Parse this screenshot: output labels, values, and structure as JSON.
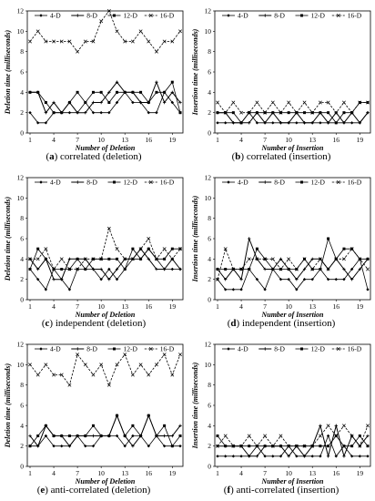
{
  "chart_data": [
    {
      "id": "a",
      "type": "line",
      "caption_letter": "a",
      "caption_text": "correlated (deletion)",
      "xlabel": "Number of Deletion",
      "ylabel": "Deletion time (milliseconds)",
      "ylim": [
        0,
        12
      ],
      "yticks": [
        "0",
        "2",
        "4",
        "6",
        "8",
        "10",
        "12"
      ],
      "x": [
        1,
        2,
        3,
        4,
        5,
        6,
        7,
        8,
        9,
        10,
        11,
        12,
        13,
        14,
        15,
        16,
        17,
        18,
        19,
        20
      ],
      "xticks": [
        "1",
        "4",
        "7",
        "10",
        "13",
        "16",
        "19"
      ],
      "legend_placement": "top",
      "series": [
        {
          "name": "4-D",
          "values": [
            2,
            1,
            1,
            2,
            2,
            2,
            2,
            3,
            2,
            2,
            2,
            3,
            4,
            3,
            3,
            2,
            2,
            4,
            3,
            2
          ]
        },
        {
          "name": "8-D",
          "values": [
            4,
            4,
            2,
            3,
            2,
            3,
            2,
            2,
            3,
            3,
            4,
            5,
            4,
            4,
            3,
            3,
            5,
            3,
            4,
            3
          ]
        },
        {
          "name": "12-D",
          "values": [
            4,
            4,
            3,
            2,
            2,
            3,
            4,
            3,
            4,
            4,
            3,
            4,
            4,
            4,
            4,
            3,
            4,
            4,
            5,
            2
          ]
        },
        {
          "name": "16-D",
          "values": [
            9,
            10,
            9,
            9,
            9,
            9,
            8,
            9,
            9,
            11,
            12,
            10,
            9,
            9,
            10,
            9,
            8,
            9,
            9,
            10
          ]
        }
      ]
    },
    {
      "id": "b",
      "type": "line",
      "caption_letter": "b",
      "caption_text": "correlated (insertion)",
      "xlabel": "Number of Insertion",
      "ylabel": "Insertion time (milliseconds)",
      "ylim": [
        0,
        12
      ],
      "yticks": [
        "0",
        "2",
        "4",
        "6",
        "8",
        "10",
        "12"
      ],
      "x": [
        1,
        2,
        3,
        4,
        5,
        6,
        7,
        8,
        9,
        10,
        11,
        12,
        13,
        14,
        15,
        16,
        17,
        18,
        19,
        20
      ],
      "xticks": [
        "1",
        "4",
        "7",
        "10",
        "13",
        "16",
        "19"
      ],
      "legend_placement": "top",
      "series": [
        {
          "name": "4-D",
          "values": [
            1,
            1,
            1,
            1,
            2,
            1,
            1,
            1,
            1,
            1,
            1,
            1,
            1,
            1,
            1,
            1,
            1,
            1,
            1,
            2
          ]
        },
        {
          "name": "8-D",
          "values": [
            2,
            2,
            1,
            1,
            1,
            2,
            1,
            2,
            1,
            1,
            2,
            1,
            1,
            2,
            1,
            2,
            1,
            2,
            1,
            2
          ]
        },
        {
          "name": "12-D",
          "values": [
            2,
            2,
            2,
            1,
            2,
            2,
            2,
            2,
            2,
            2,
            2,
            2,
            2,
            2,
            2,
            1,
            2,
            2,
            3,
            3
          ]
        },
        {
          "name": "16-D",
          "values": [
            3,
            2,
            3,
            2,
            2,
            3,
            2,
            3,
            2,
            3,
            2,
            3,
            2,
            3,
            3,
            2,
            3,
            2,
            3,
            3
          ]
        }
      ]
    },
    {
      "id": "c",
      "type": "line",
      "caption_letter": "c",
      "caption_text": "independent (deletion)",
      "xlabel": "Number of Deletion",
      "ylabel": "Deletion time (milliseconds)",
      "ylim": [
        0,
        12
      ],
      "yticks": [
        "0",
        "2",
        "4",
        "6",
        "8",
        "10",
        "12"
      ],
      "x": [
        1,
        2,
        3,
        4,
        5,
        6,
        7,
        8,
        9,
        10,
        11,
        12,
        13,
        14,
        15,
        16,
        17,
        18,
        19,
        20
      ],
      "xticks": [
        "1",
        "4",
        "7",
        "10",
        "13",
        "16",
        "19"
      ],
      "legend_placement": "top",
      "series": [
        {
          "name": "4-D",
          "values": [
            3,
            2,
            1,
            3,
            2,
            1,
            3,
            3,
            3,
            2,
            3,
            2,
            3,
            4,
            4,
            5,
            4,
            3,
            3,
            3
          ]
        },
        {
          "name": "8-D",
          "values": [
            4,
            3,
            4,
            2,
            2,
            4,
            4,
            4,
            3,
            3,
            2,
            3,
            4,
            4,
            5,
            4,
            3,
            3,
            4,
            3
          ]
        },
        {
          "name": "12-D",
          "values": [
            3,
            5,
            4,
            3,
            3,
            3,
            4,
            3,
            4,
            4,
            4,
            4,
            3,
            5,
            4,
            5,
            4,
            4,
            5,
            5
          ]
        },
        {
          "name": "16-D",
          "values": [
            4,
            4,
            5,
            3,
            4,
            3,
            3,
            4,
            4,
            4,
            7,
            5,
            4,
            4,
            5,
            6,
            4,
            5,
            4,
            5
          ]
        }
      ]
    },
    {
      "id": "d",
      "type": "line",
      "caption_letter": "d",
      "caption_text": "independent (insertion)",
      "xlabel": "Number of Insertion",
      "ylabel": "Insertion time (milliseconds)",
      "ylim": [
        0,
        12
      ],
      "yticks": [
        "0",
        "2",
        "4",
        "6",
        "8",
        "10",
        "12"
      ],
      "x": [
        1,
        2,
        3,
        4,
        5,
        6,
        7,
        8,
        9,
        10,
        11,
        12,
        13,
        14,
        15,
        16,
        17,
        18,
        19,
        20
      ],
      "xticks": [
        "1",
        "4",
        "7",
        "10",
        "13",
        "16",
        "19"
      ],
      "legend_placement": "top",
      "series": [
        {
          "name": "4-D",
          "values": [
            2,
            1,
            1,
            1,
            3,
            2,
            1,
            3,
            2,
            2,
            1,
            2,
            2,
            3,
            2,
            2,
            2,
            3,
            4,
            1
          ]
        },
        {
          "name": "8-D",
          "values": [
            3,
            2,
            3,
            2,
            6,
            4,
            3,
            3,
            4,
            3,
            2,
            3,
            4,
            4,
            3,
            4,
            3,
            2,
            3,
            4
          ]
        },
        {
          "name": "12-D",
          "values": [
            3,
            3,
            3,
            3,
            3,
            5,
            4,
            3,
            3,
            3,
            3,
            4,
            3,
            3,
            6,
            4,
            5,
            5,
            4,
            4
          ]
        },
        {
          "name": "16-D",
          "values": [
            2,
            5,
            3,
            3,
            4,
            4,
            4,
            4,
            3,
            4,
            3,
            4,
            3,
            4,
            3,
            4,
            4,
            5,
            4,
            3
          ]
        }
      ]
    },
    {
      "id": "e",
      "type": "line",
      "caption_letter": "e",
      "caption_text": "anti-correlated (deletion)",
      "xlabel": "Number of Deletion",
      "ylabel": "Deletion time (milliseconds)",
      "ylim": [
        0,
        12
      ],
      "yticks": [
        "0",
        "2",
        "4",
        "6",
        "8",
        "10",
        "12"
      ],
      "x": [
        1,
        2,
        3,
        4,
        5,
        6,
        7,
        8,
        9,
        10,
        11,
        12,
        13,
        14,
        15,
        16,
        17,
        18,
        19,
        20
      ],
      "xticks": [
        "1",
        "4",
        "7",
        "10",
        "13",
        "16",
        "19"
      ],
      "legend_placement": "top",
      "series": [
        {
          "name": "4-D",
          "values": [
            2,
            2,
            3,
            2,
            2,
            2,
            3,
            2,
            2,
            3,
            3,
            3,
            2,
            3,
            3,
            2,
            3,
            2,
            2,
            2
          ]
        },
        {
          "name": "8-D",
          "values": [
            3,
            2,
            4,
            3,
            3,
            2,
            3,
            3,
            3,
            3,
            3,
            5,
            3,
            2,
            3,
            5,
            3,
            3,
            3,
            4
          ]
        },
        {
          "name": "12-D",
          "values": [
            2,
            3,
            4,
            3,
            3,
            3,
            3,
            3,
            4,
            3,
            3,
            5,
            3,
            4,
            3,
            5,
            3,
            4,
            2,
            3
          ]
        },
        {
          "name": "16-D",
          "values": [
            10,
            9,
            10,
            9,
            9,
            8,
            11,
            10,
            9,
            10,
            8,
            10,
            11,
            9,
            10,
            9,
            10,
            11,
            9,
            11
          ]
        }
      ]
    },
    {
      "id": "f",
      "type": "line",
      "caption_letter": "f",
      "caption_text": "anti-correlated (insertion)",
      "xlabel": "Number of Insertion",
      "ylabel": "Insertion time (milliseconds)",
      "ylim": [
        0,
        12
      ],
      "yticks": [
        "0",
        "2",
        "4",
        "6",
        "8",
        "10",
        "12"
      ],
      "x": [
        1,
        2,
        3,
        4,
        5,
        6,
        7,
        8,
        9,
        10,
        11,
        12,
        13,
        14,
        15,
        16,
        17,
        18,
        19,
        20
      ],
      "xticks": [
        "1",
        "4",
        "7",
        "10",
        "13",
        "16",
        "19"
      ],
      "legend_placement": "top",
      "series": [
        {
          "name": "4-D",
          "values": [
            1,
            1,
            1,
            1,
            1,
            2,
            1,
            1,
            1,
            2,
            1,
            1,
            1,
            1,
            3,
            1,
            2,
            1,
            1,
            1
          ]
        },
        {
          "name": "8-D",
          "values": [
            2,
            2,
            2,
            2,
            1,
            1,
            2,
            2,
            2,
            1,
            2,
            1,
            2,
            4,
            1,
            4,
            1,
            3,
            2,
            3
          ]
        },
        {
          "name": "12-D",
          "values": [
            3,
            2,
            2,
            2,
            2,
            2,
            2,
            2,
            2,
            2,
            2,
            2,
            2,
            2,
            2,
            3,
            2,
            2,
            3,
            2
          ]
        },
        {
          "name": "16-D",
          "values": [
            2,
            3,
            2,
            2,
            3,
            2,
            3,
            2,
            3,
            2,
            2,
            2,
            2,
            3,
            4,
            3,
            4,
            3,
            2,
            4
          ]
        }
      ]
    }
  ]
}
